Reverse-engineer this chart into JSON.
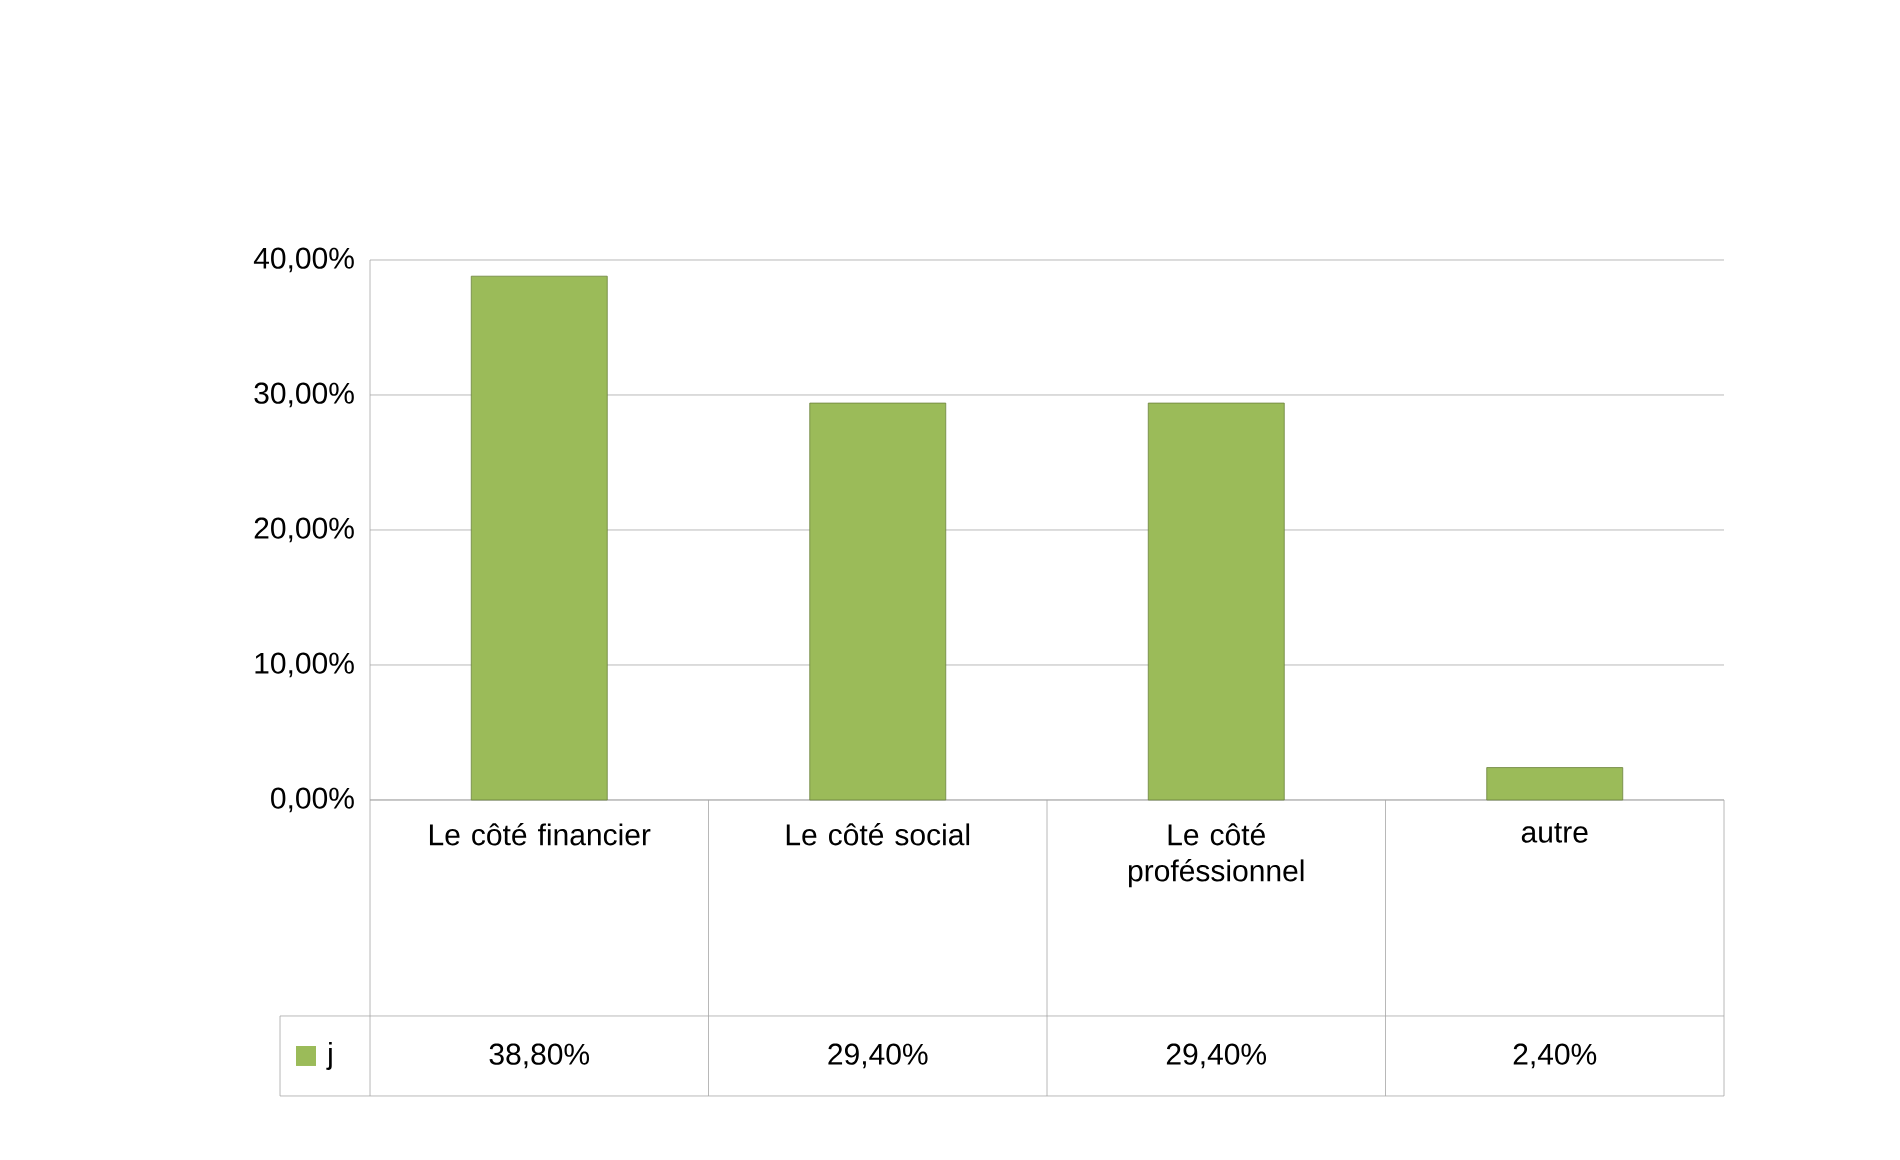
{
  "chart_data": {
    "type": "bar",
    "categories": [
      "Le côté financier",
      "Le côté social",
      "Le côté proféssionnel",
      "autre"
    ],
    "series": [
      {
        "name": "j",
        "color": "#9bbb59",
        "values": [
          38.8,
          29.4,
          29.4,
          2.4
        ],
        "value_labels": [
          "38,80%",
          "29,40%",
          "29,40%",
          "2,40%"
        ]
      }
    ],
    "ylim": [
      0,
      40
    ],
    "yticks": [
      {
        "value": 0,
        "label": "0,00%"
      },
      {
        "value": 10,
        "label": "10,00%"
      },
      {
        "value": 20,
        "label": "20,00%"
      },
      {
        "value": 30,
        "label": "30,00%"
      },
      {
        "value": 40,
        "label": "40,00%"
      }
    ],
    "grid": "y",
    "legend": "bottom left"
  }
}
